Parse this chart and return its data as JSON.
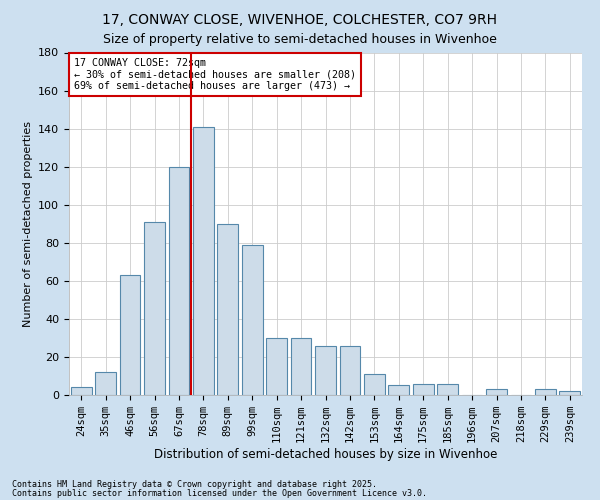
{
  "title1": "17, CONWAY CLOSE, WIVENHOE, COLCHESTER, CO7 9RH",
  "title2": "Size of property relative to semi-detached houses in Wivenhoe",
  "xlabel": "Distribution of semi-detached houses by size in Wivenhoe",
  "ylabel": "Number of semi-detached properties",
  "categories": [
    "24sqm",
    "35sqm",
    "46sqm",
    "56sqm",
    "67sqm",
    "78sqm",
    "89sqm",
    "99sqm",
    "110sqm",
    "121sqm",
    "132sqm",
    "142sqm",
    "153sqm",
    "164sqm",
    "175sqm",
    "185sqm",
    "196sqm",
    "207sqm",
    "218sqm",
    "229sqm",
    "239sqm"
  ],
  "values": [
    4,
    12,
    63,
    91,
    120,
    141,
    90,
    79,
    30,
    30,
    26,
    26,
    11,
    5,
    6,
    6,
    0,
    3,
    0,
    3,
    2
  ],
  "bar_color": "#cddce9",
  "bar_edge_color": "#5588aa",
  "vline_x": 4.5,
  "vline_color": "#cc0000",
  "annotation_title": "17 CONWAY CLOSE: 72sqm",
  "annotation_line1": "← 30% of semi-detached houses are smaller (208)",
  "annotation_line2": "69% of semi-detached houses are larger (473) →",
  "annotation_box_color": "#ffffff",
  "annotation_box_edge_color": "#cc0000",
  "ylim": [
    0,
    180
  ],
  "yticks": [
    0,
    20,
    40,
    60,
    80,
    100,
    120,
    140,
    160,
    180
  ],
  "footnote1": "Contains HM Land Registry data © Crown copyright and database right 2025.",
  "footnote2": "Contains public sector information licensed under the Open Government Licence v3.0.",
  "fig_bg_color": "#cde0f0",
  "plot_bg_color": "#ffffff",
  "grid_color": "#cccccc",
  "title1_fontsize": 10,
  "title2_fontsize": 9
}
